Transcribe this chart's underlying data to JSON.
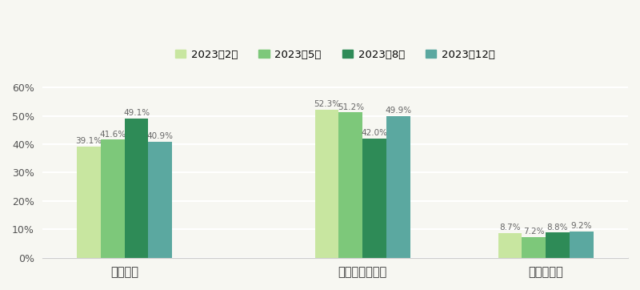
{
  "categories": [
    "実施した",
    "実施しなかった",
    "わからない"
  ],
  "series": [
    {
      "label": "2023年2月",
      "color": "#c8e6a0",
      "values": [
        39.1,
        52.3,
        8.7
      ]
    },
    {
      "label": "2023年5月",
      "color": "#7dc87a",
      "values": [
        41.6,
        51.2,
        7.2
      ]
    },
    {
      "label": "2023年8月",
      "color": "#2e8b57",
      "values": [
        49.1,
        42.0,
        8.8
      ]
    },
    {
      "label": "2023年12月",
      "color": "#5ba8a0",
      "values": [
        40.9,
        49.9,
        9.2
      ]
    }
  ],
  "ylim": [
    0,
    63
  ],
  "yticks": [
    0,
    10,
    20,
    30,
    40,
    50,
    60
  ],
  "ytick_labels": [
    "0%",
    "10%",
    "20%",
    "30%",
    "40%",
    "50%",
    "60%"
  ],
  "bar_width": 0.13,
  "background_color": "#f7f7f2",
  "label_fontsize": 7.5,
  "legend_fontsize": 9.5,
  "tick_fontsize": 9,
  "category_fontsize": 10.5,
  "group_centers": [
    0.22,
    0.57,
    0.87
  ],
  "xlim": [
    0.02,
    1.0
  ]
}
